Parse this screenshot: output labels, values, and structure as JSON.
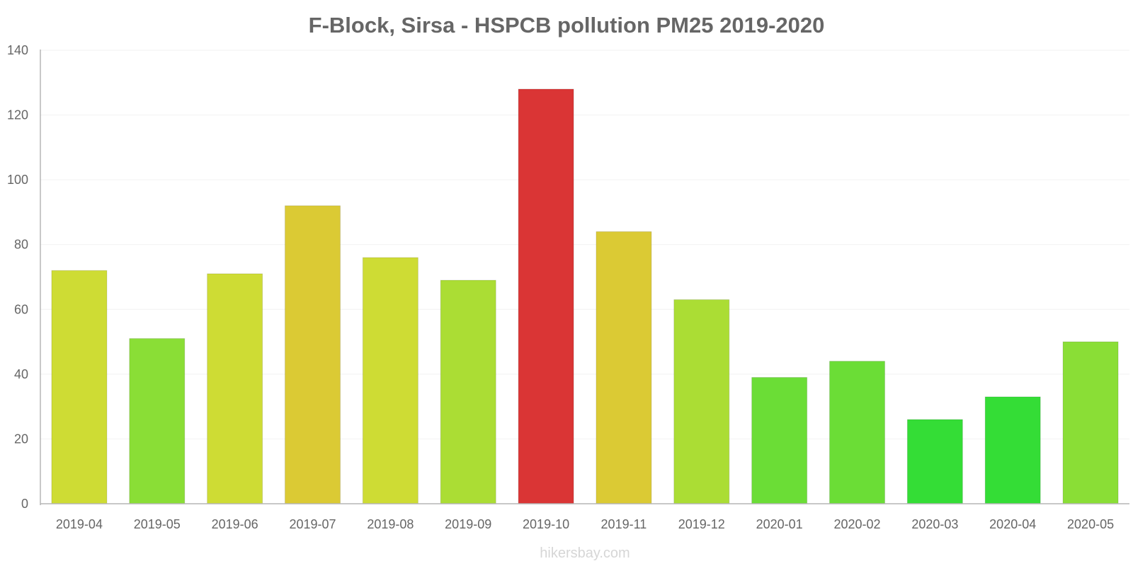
{
  "chart_data": {
    "type": "bar",
    "title": "F-Block, Sirsa - HSPCB pollution PM25 2019-2020",
    "xlabel": "",
    "ylabel": "",
    "ylim": [
      0,
      140
    ],
    "yticks": [
      0,
      20,
      40,
      60,
      80,
      100,
      120,
      140
    ],
    "grid": true,
    "legend": "none",
    "categories": [
      "2019-04",
      "2019-05",
      "2019-06",
      "2019-07",
      "2019-08",
      "2019-09",
      "2019-10",
      "2019-11",
      "2019-12",
      "2020-01",
      "2020-02",
      "2020-03",
      "2020-04",
      "2020-05"
    ],
    "values": [
      72,
      51,
      71,
      92,
      76,
      69,
      128,
      84,
      63,
      39,
      44,
      26,
      33,
      50
    ],
    "colors": [
      "#cedc34",
      "#8ade36",
      "#cedc34",
      "#dbca34",
      "#cedc34",
      "#abdd34",
      "#da3535",
      "#dbca34",
      "#abdd34",
      "#6bdd36",
      "#6bdd36",
      "#34dd36",
      "#34dd36",
      "#8ade36"
    ]
  },
  "footer": {
    "source": "hikersbay.com"
  }
}
